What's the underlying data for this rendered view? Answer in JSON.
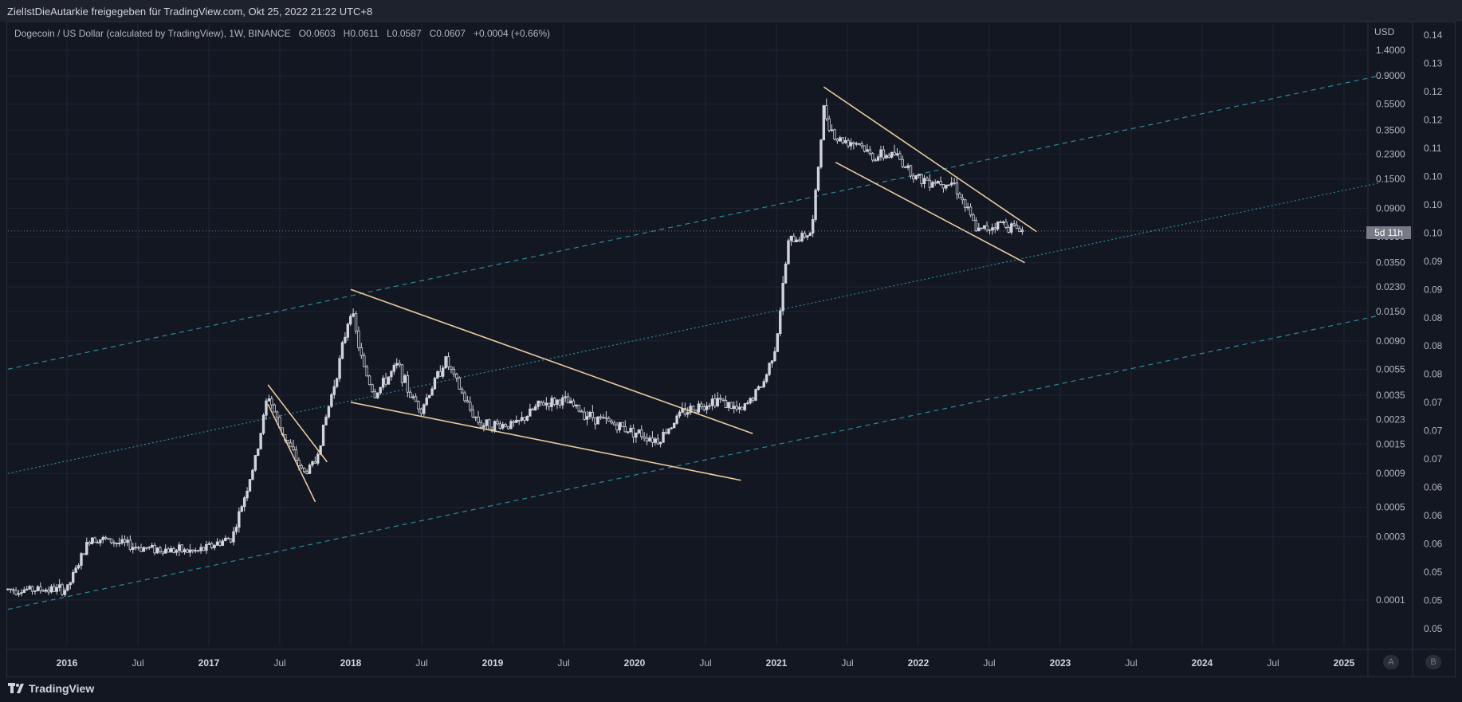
{
  "header": {
    "publish_line": "ZielIstDieAutarkie freigegeben für TradingView.com, Okt 25, 2022 21:22 UTC+8"
  },
  "legend": {
    "symbol": "Dogecoin / US Dollar (calculated by TradingView), 1W, BINANCE",
    "o_label": "O",
    "o": "0.0603",
    "h_label": "H",
    "h": "0.0611",
    "l_label": "L",
    "l": "0.0587",
    "c_label": "C",
    "c": "0.0607",
    "change": "+0.0004 (+0.66%)"
  },
  "price_scale": {
    "currency": "USD",
    "countdown": "5d 11h"
  },
  "footer": {
    "brand": "TradingView",
    "auto_button": "A",
    "b_button": "B"
  },
  "colors": {
    "background": "#131722",
    "candle": "#d1d4dc",
    "trendline": "#e8c9a0",
    "channel": "#2b8b9a",
    "grid": "#1f2431",
    "text": "#b2b5be"
  },
  "chart_data": {
    "type": "candlestick",
    "title": "Dogecoin / US Dollar (calculated by TradingView), 1W, BINANCE",
    "log_scale": true,
    "x_ticks": [
      "2016",
      "Jul",
      "2017",
      "Jul",
      "2018",
      "Jul",
      "2019",
      "Jul",
      "2020",
      "Jul",
      "2021",
      "Jul",
      "2022",
      "Jul",
      "2023",
      "Jul",
      "2024",
      "Jul",
      "2025"
    ],
    "x_range": [
      "2015-08",
      "2025-04"
    ],
    "y_ticks_inner": [
      "1.4000",
      "0.9000",
      "0.5500",
      "0.3500",
      "0.2300",
      "0.1500",
      "0.0900",
      "0.0550",
      "0.0350",
      "0.0230",
      "0.0150",
      "0.0090",
      "0.0055",
      "0.0035",
      "0.0023",
      "0.0015",
      "0.0009",
      "0.0005",
      "0.0003",
      "0.0001"
    ],
    "y_ticks_outer": [
      "0.14",
      "0.13",
      "0.12",
      "0.12",
      "0.11",
      "0.10",
      "0.10",
      "0.10",
      "0.09",
      "0.09",
      "0.08",
      "0.08",
      "0.08",
      "0.07",
      "0.07",
      "0.07",
      "0.06",
      "0.06",
      "0.06",
      "0.05",
      "0.05",
      "0.05"
    ],
    "last_price": 0.0607,
    "grid": true,
    "price_path": [
      [
        "2015-08",
        0.00012
      ],
      [
        "2016-01",
        0.00012
      ],
      [
        "2016-03",
        0.0003
      ],
      [
        "2016-07",
        0.00025
      ],
      [
        "2016-12",
        0.00023
      ],
      [
        "2017-03",
        0.0003
      ],
      [
        "2017-05",
        0.0012
      ],
      [
        "2017-06",
        0.0036
      ],
      [
        "2017-07",
        0.002
      ],
      [
        "2017-09",
        0.0009
      ],
      [
        "2017-10",
        0.0011
      ],
      [
        "2017-12",
        0.006
      ],
      [
        "2018-01",
        0.016
      ],
      [
        "2018-02",
        0.006
      ],
      [
        "2018-03",
        0.0035
      ],
      [
        "2018-05",
        0.006
      ],
      [
        "2018-06",
        0.0035
      ],
      [
        "2018-07",
        0.0028
      ],
      [
        "2018-09",
        0.0065
      ],
      [
        "2018-11",
        0.0028
      ],
      [
        "2018-12",
        0.0021
      ],
      [
        "2019-03",
        0.0021
      ],
      [
        "2019-05",
        0.003
      ],
      [
        "2019-07",
        0.0032
      ],
      [
        "2019-09",
        0.0025
      ],
      [
        "2019-12",
        0.002
      ],
      [
        "2020-03",
        0.0016
      ],
      [
        "2020-05",
        0.0026
      ],
      [
        "2020-08",
        0.0033
      ],
      [
        "2020-10",
        0.0026
      ],
      [
        "2020-12",
        0.0045
      ],
      [
        "2021-01",
        0.009
      ],
      [
        "2021-02",
        0.05
      ],
      [
        "2021-04",
        0.06
      ],
      [
        "2021-05",
        0.5
      ],
      [
        "2021-06",
        0.3
      ],
      [
        "2021-08",
        0.28
      ],
      [
        "2021-09",
        0.22
      ],
      [
        "2021-11",
        0.23
      ],
      [
        "2022-01",
        0.15
      ],
      [
        "2022-04",
        0.14
      ],
      [
        "2022-06",
        0.06
      ],
      [
        "2022-08",
        0.07
      ],
      [
        "2022-10",
        0.0607
      ]
    ],
    "trendlines": [
      {
        "from": [
          "2017-06",
          0.0042
        ],
        "to": [
          "2017-11",
          0.0011
        ]
      },
      {
        "from": [
          "2017-06",
          0.003
        ],
        "to": [
          "2017-10",
          0.00055
        ]
      },
      {
        "from": [
          "2018-01",
          0.022
        ],
        "to": [
          "2020-11",
          0.0018
        ]
      },
      {
        "from": [
          "2018-01",
          0.0031
        ],
        "to": [
          "2020-10",
          0.0008
        ]
      },
      {
        "from": [
          "2021-05",
          0.74
        ],
        "to": [
          "2022-11",
          0.06
        ]
      },
      {
        "from": [
          "2021-06",
          0.2
        ],
        "to": [
          "2022-10",
          0.035
        ]
      }
    ],
    "channel": {
      "upper": {
        "from": [
          "2015-08",
          0.0055
        ],
        "to": [
          "2025-04",
          0.9
        ]
      },
      "middle": {
        "from": [
          "2015-08",
          0.0009
        ],
        "to": [
          "2025-04",
          0.14
        ]
      },
      "lower": {
        "from": [
          "2015-08",
          8.5e-05
        ],
        "to": [
          "2025-04",
          0.014
        ]
      }
    }
  }
}
